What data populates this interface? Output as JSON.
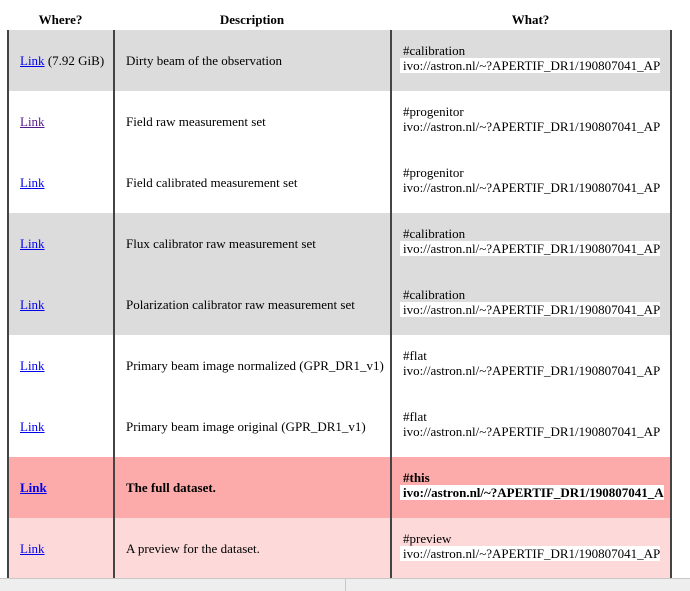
{
  "headers": {
    "where": "Where?",
    "description": "Description",
    "what": "What?"
  },
  "rows": [
    {
      "link": "Link",
      "size": " (7.92 GiB)",
      "description": "Dirty beam of the observation",
      "semantics": "#calibration",
      "ivo": "ivo://astron.nl/~?APERTIF_DR1/190807041_AP"
    },
    {
      "link": "Link",
      "size": "",
      "description": "Field raw measurement set",
      "semantics": "#progenitor",
      "ivo": "ivo://astron.nl/~?APERTIF_DR1/190807041_AP"
    },
    {
      "link": "Link",
      "size": "",
      "description": "Field calibrated measurement set",
      "semantics": "#progenitor",
      "ivo": "ivo://astron.nl/~?APERTIF_DR1/190807041_AP"
    },
    {
      "link": "Link",
      "size": "",
      "description": "Flux calibrator raw measurement set",
      "semantics": "#calibration",
      "ivo": "ivo://astron.nl/~?APERTIF_DR1/190807041_AP"
    },
    {
      "link": "Link",
      "size": "",
      "description": "Polarization calibrator raw measurement set",
      "semantics": "#calibration",
      "ivo": "ivo://astron.nl/~?APERTIF_DR1/190807041_AP"
    },
    {
      "link": "Link",
      "size": "",
      "description": "Primary beam image normalized (GPR_DR1_v1)",
      "semantics": "#flat",
      "ivo": "ivo://astron.nl/~?APERTIF_DR1/190807041_AP"
    },
    {
      "link": "Link",
      "size": "",
      "description": "Primary beam image original (GPR_DR1_v1)",
      "semantics": "#flat",
      "ivo": "ivo://astron.nl/~?APERTIF_DR1/190807041_AP"
    },
    {
      "link": "Link",
      "size": "",
      "description": "The full dataset.",
      "semantics": "#this",
      "ivo": "ivo://astron.nl/~?APERTIF_DR1/190807041_A"
    },
    {
      "link": "Link",
      "size": "",
      "description": "A preview for the dataset.",
      "semantics": "#preview",
      "ivo": "ivo://astron.nl/~?APERTIF_DR1/190807041_AP"
    }
  ],
  "colors": {
    "row_gray": "#dcdcdc",
    "row_white": "#ffffff",
    "row_this": "#fdaaaa",
    "row_preview": "#fdd9d9",
    "link": "#0000ee",
    "link_visited": "#551a8b"
  }
}
